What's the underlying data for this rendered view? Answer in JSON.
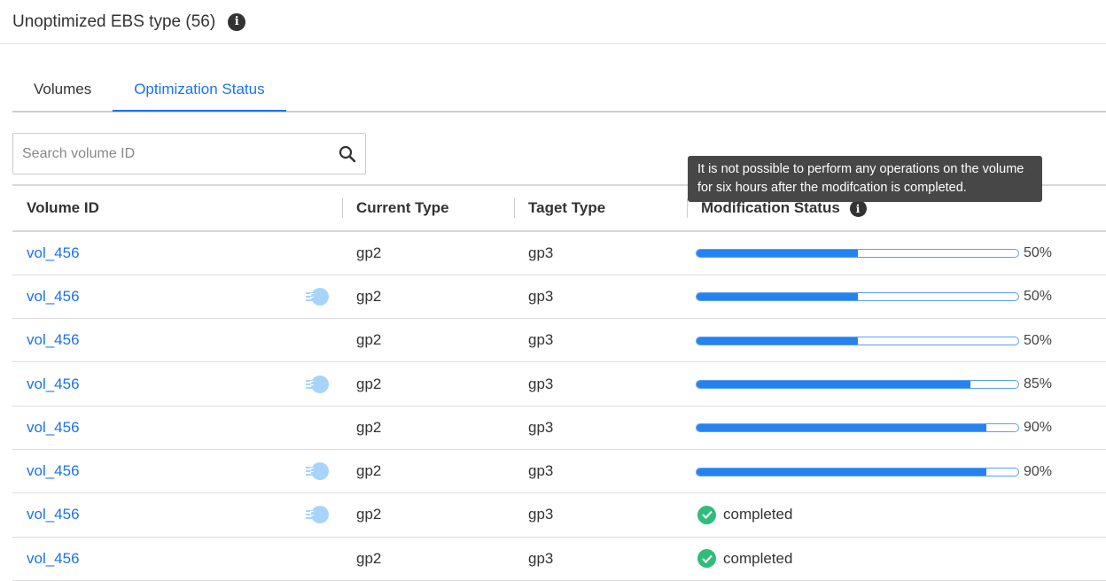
{
  "header": {
    "title": "Unoptimized EBS type (56)",
    "info_icon": "info-icon"
  },
  "tabs": [
    {
      "label": "Volumes",
      "active": false
    },
    {
      "label": "Optimization Status",
      "active": true
    }
  ],
  "search": {
    "placeholder": "Search volume ID",
    "value": ""
  },
  "table": {
    "columns": [
      "Volume ID",
      "Current Type",
      "Taget Type",
      "Modification Status"
    ],
    "rows": [
      {
        "id": "vol_456",
        "icon": false,
        "current": "gp2",
        "target": "gp3",
        "progress": 50,
        "label": "50%"
      },
      {
        "id": "vol_456",
        "icon": true,
        "current": "gp2",
        "target": "gp3",
        "progress": 50,
        "label": "50%"
      },
      {
        "id": "vol_456",
        "icon": false,
        "current": "gp2",
        "target": "gp3",
        "progress": 50,
        "label": "50%"
      },
      {
        "id": "vol_456",
        "icon": true,
        "current": "gp2",
        "target": "gp3",
        "progress": 85,
        "label": "85%"
      },
      {
        "id": "vol_456",
        "icon": false,
        "current": "gp2",
        "target": "gp3",
        "progress": 90,
        "label": "90%"
      },
      {
        "id": "vol_456",
        "icon": true,
        "current": "gp2",
        "target": "gp3",
        "progress": 90,
        "label": "90%"
      },
      {
        "id": "vol_456",
        "icon": true,
        "current": "gp2",
        "target": "gp3",
        "status": "completed"
      },
      {
        "id": "vol_456",
        "icon": false,
        "current": "gp2",
        "target": "gp3",
        "status": "completed"
      }
    ]
  },
  "tooltip": "It is not possible to perform any operations on the volume for six hours after the modifcation is completed.",
  "colors": {
    "accent": "#1a73e8",
    "progress": "#2483f0",
    "success": "#2ebd7a"
  }
}
